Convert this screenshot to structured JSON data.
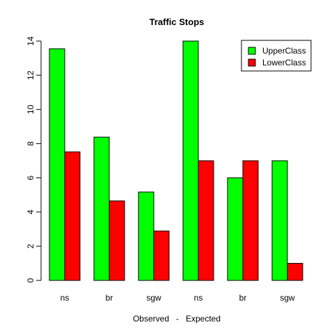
{
  "chart_data": {
    "type": "bar",
    "title": "Traffic Stops",
    "xlabel": "Observed   -   Expected",
    "ylabel": "",
    "categories": [
      "ns",
      "br",
      "sgw",
      "ns",
      "br",
      "sgw"
    ],
    "series": [
      {
        "name": "UpperClass",
        "color": "#00ff00",
        "values": [
          13.55,
          8.38,
          5.17,
          14,
          6,
          7
        ]
      },
      {
        "name": "LowerClass",
        "color": "#ff0000",
        "values": [
          7.52,
          4.65,
          2.89,
          7,
          7,
          1
        ]
      }
    ],
    "ylim": [
      0,
      14
    ],
    "yticks": [
      "0",
      "2",
      "4",
      "6",
      "8",
      "10",
      "12",
      "14"
    ],
    "grid": false,
    "legend_position": "top-right"
  }
}
